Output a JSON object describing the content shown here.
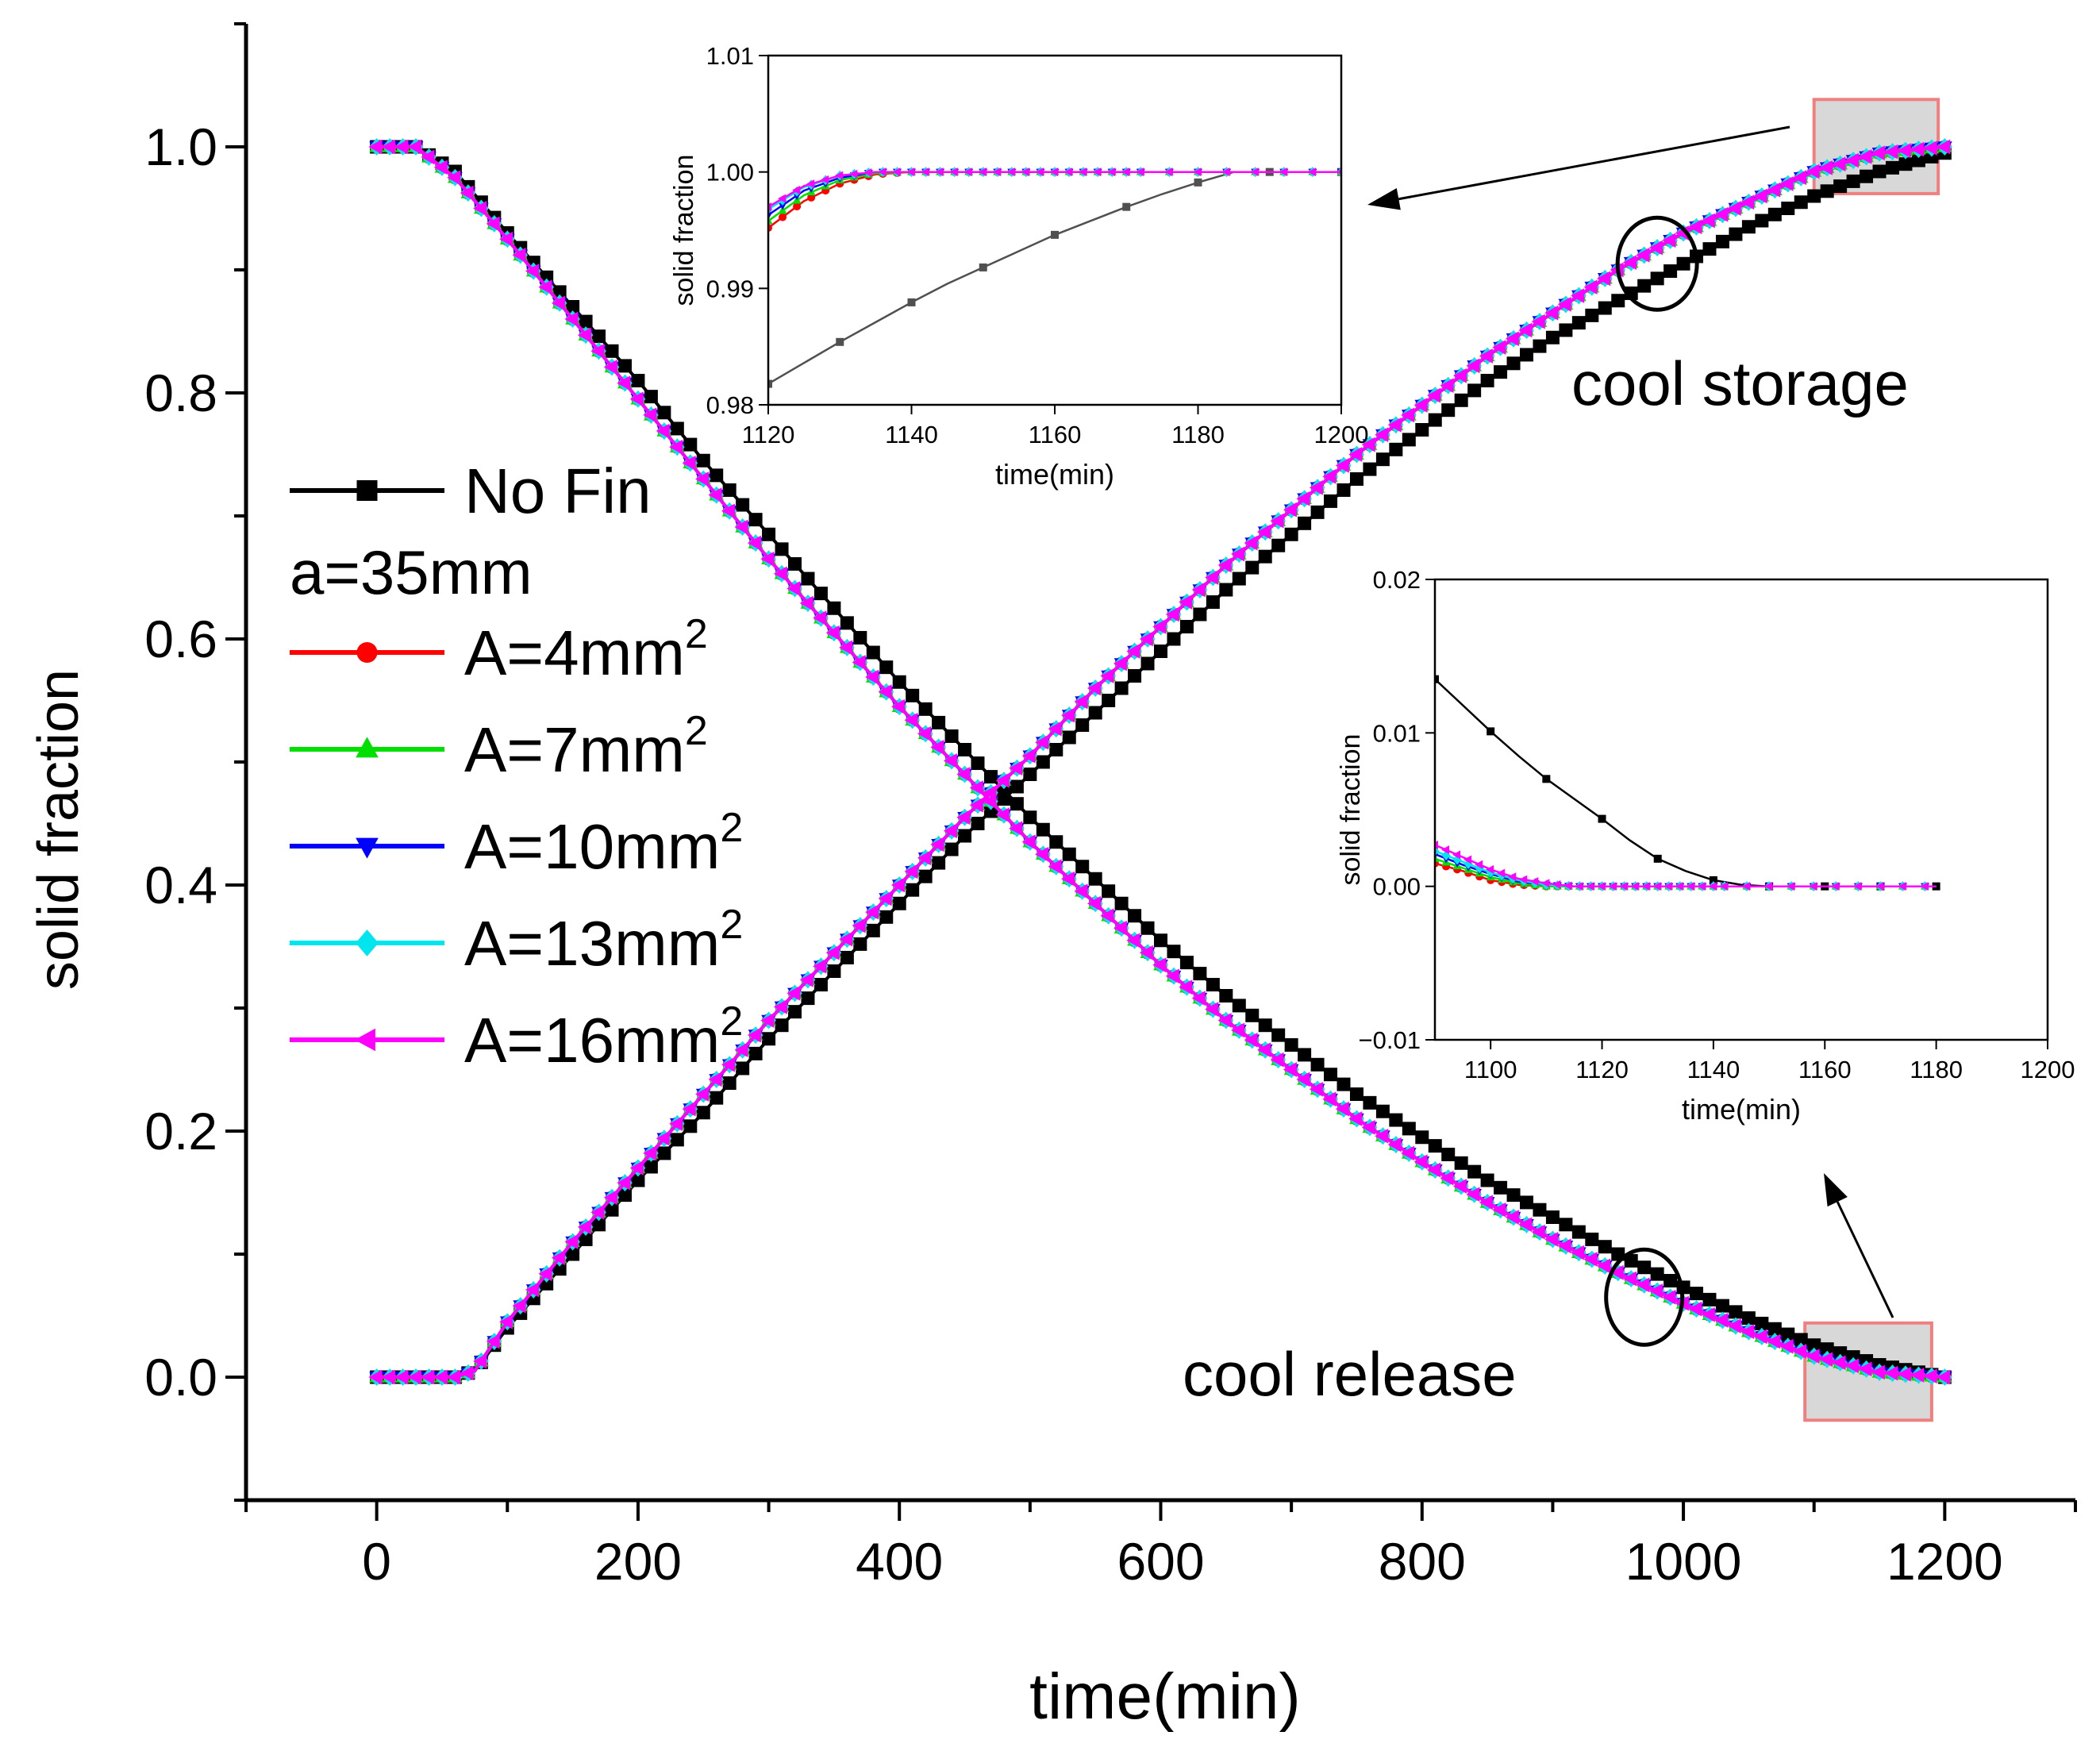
{
  "chart_data": [
    {
      "type": "line",
      "xlabel": "time(min)",
      "ylabel": "solid fraction",
      "xlim": [
        -100,
        1300
      ],
      "ylim": [
        -0.1,
        1.1
      ],
      "xticks": [
        0,
        200,
        400,
        600,
        800,
        1000,
        1200
      ],
      "xtick_labels": [
        "0",
        "200",
        "400",
        "600",
        "800",
        "1000",
        "1200"
      ],
      "yticks": [
        0.0,
        0.2,
        0.4,
        0.6,
        0.8,
        1.0
      ],
      "ytick_labels": [
        "0.0",
        "0.2",
        "0.4",
        "0.6",
        "0.8",
        "1.0"
      ],
      "grid": false,
      "legend_placement": "center-left",
      "legend_subtitle": "a=35mm",
      "annotations": [
        {
          "text": "cool storage"
        },
        {
          "text": "cool release"
        }
      ],
      "x_release": [
        0,
        30,
        60,
        100,
        150,
        200,
        250,
        300,
        350,
        400,
        450,
        500,
        550,
        600,
        650,
        700,
        750,
        800,
        850,
        900,
        950,
        1000,
        1050,
        1100,
        1150,
        1200
      ],
      "x_storage": [
        0,
        20,
        40,
        60,
        75,
        100,
        150,
        200,
        250,
        300,
        350,
        400,
        450,
        500,
        550,
        600,
        650,
        700,
        750,
        800,
        850,
        900,
        950,
        1000,
        1050,
        1100,
        1150,
        1200
      ],
      "series": [
        {
          "name": "No Fin",
          "color": "#000000",
          "marker": "square",
          "release": [
            1.0,
            1.0,
            0.98,
            0.93,
            0.87,
            0.81,
            0.745,
            0.685,
            0.625,
            0.565,
            0.51,
            0.455,
            0.405,
            0.355,
            0.31,
            0.27,
            0.23,
            0.195,
            0.16,
            0.13,
            0.1,
            0.073,
            0.048,
            0.026,
            0.01,
            0.0
          ],
          "storage": [
            0.0,
            0.0,
            0.0,
            0.0,
            0.005,
            0.04,
            0.1,
            0.16,
            0.215,
            0.275,
            0.33,
            0.385,
            0.44,
            0.49,
            0.54,
            0.59,
            0.64,
            0.685,
            0.73,
            0.77,
            0.81,
            0.845,
            0.875,
            0.905,
            0.935,
            0.96,
            0.98,
            0.995
          ]
        },
        {
          "name": "A=4mm",
          "unit_sup": "2",
          "color": "#ff0000",
          "marker": "circle",
          "release": [
            1.0,
            1.0,
            0.975,
            0.925,
            0.86,
            0.795,
            0.73,
            0.665,
            0.605,
            0.545,
            0.49,
            0.435,
            0.385,
            0.335,
            0.29,
            0.25,
            0.21,
            0.175,
            0.142,
            0.112,
            0.085,
            0.06,
            0.037,
            0.017,
            0.004,
            0.0
          ],
          "storage": [
            0.0,
            0.0,
            0.0,
            0.0,
            0.005,
            0.045,
            0.11,
            0.17,
            0.23,
            0.29,
            0.345,
            0.4,
            0.455,
            0.505,
            0.56,
            0.61,
            0.66,
            0.705,
            0.75,
            0.79,
            0.83,
            0.865,
            0.9,
            0.93,
            0.955,
            0.98,
            0.995,
            1.0
          ]
        },
        {
          "name": "A=7mm",
          "unit_sup": "2",
          "color": "#00e000",
          "marker": "triangle-up",
          "release": [
            1.0,
            1.0,
            0.975,
            0.925,
            0.86,
            0.795,
            0.73,
            0.665,
            0.605,
            0.545,
            0.49,
            0.435,
            0.385,
            0.335,
            0.29,
            0.25,
            0.21,
            0.175,
            0.142,
            0.112,
            0.085,
            0.06,
            0.037,
            0.017,
            0.004,
            0.0
          ],
          "storage": [
            0.0,
            0.0,
            0.0,
            0.0,
            0.005,
            0.045,
            0.11,
            0.17,
            0.23,
            0.29,
            0.345,
            0.4,
            0.455,
            0.505,
            0.56,
            0.61,
            0.66,
            0.705,
            0.75,
            0.79,
            0.83,
            0.865,
            0.9,
            0.93,
            0.955,
            0.98,
            0.995,
            1.0
          ]
        },
        {
          "name": "A=10mm",
          "unit_sup": "2",
          "color": "#0000ff",
          "marker": "triangle-down",
          "release": [
            1.0,
            1.0,
            0.975,
            0.925,
            0.86,
            0.795,
            0.73,
            0.665,
            0.605,
            0.545,
            0.49,
            0.435,
            0.385,
            0.335,
            0.29,
            0.25,
            0.21,
            0.175,
            0.142,
            0.112,
            0.085,
            0.06,
            0.037,
            0.017,
            0.004,
            0.0
          ],
          "storage": [
            0.0,
            0.0,
            0.0,
            0.0,
            0.005,
            0.045,
            0.11,
            0.17,
            0.23,
            0.29,
            0.345,
            0.4,
            0.455,
            0.505,
            0.56,
            0.61,
            0.66,
            0.705,
            0.75,
            0.79,
            0.83,
            0.865,
            0.9,
            0.93,
            0.955,
            0.98,
            0.995,
            1.0
          ]
        },
        {
          "name": "A=13mm",
          "unit_sup": "2",
          "color": "#00e5ee",
          "marker": "diamond",
          "release": [
            1.0,
            1.0,
            0.975,
            0.925,
            0.86,
            0.795,
            0.73,
            0.665,
            0.605,
            0.545,
            0.49,
            0.435,
            0.385,
            0.335,
            0.29,
            0.25,
            0.21,
            0.175,
            0.142,
            0.112,
            0.085,
            0.06,
            0.037,
            0.017,
            0.004,
            0.0
          ],
          "storage": [
            0.0,
            0.0,
            0.0,
            0.0,
            0.005,
            0.045,
            0.11,
            0.17,
            0.23,
            0.29,
            0.345,
            0.4,
            0.455,
            0.505,
            0.56,
            0.61,
            0.66,
            0.705,
            0.75,
            0.79,
            0.83,
            0.865,
            0.9,
            0.93,
            0.955,
            0.98,
            0.995,
            1.0
          ]
        },
        {
          "name": "A=16mm",
          "unit_sup": "2",
          "color": "#ff00ff",
          "marker": "triangle-left",
          "release": [
            1.0,
            1.0,
            0.975,
            0.925,
            0.86,
            0.795,
            0.73,
            0.665,
            0.605,
            0.545,
            0.49,
            0.435,
            0.385,
            0.335,
            0.29,
            0.25,
            0.21,
            0.175,
            0.142,
            0.112,
            0.085,
            0.06,
            0.037,
            0.017,
            0.004,
            0.0
          ],
          "storage": [
            0.0,
            0.0,
            0.0,
            0.0,
            0.005,
            0.045,
            0.11,
            0.17,
            0.23,
            0.29,
            0.345,
            0.4,
            0.455,
            0.505,
            0.56,
            0.61,
            0.66,
            0.705,
            0.75,
            0.79,
            0.83,
            0.865,
            0.9,
            0.93,
            0.955,
            0.98,
            0.995,
            1.0
          ]
        }
      ]
    },
    {
      "type": "line",
      "role": "inset-cool-storage",
      "xlabel": "time(min)",
      "ylabel": "solid fraction",
      "xlim": [
        1120,
        1200
      ],
      "ylim": [
        0.98,
        1.01
      ],
      "xticks": [
        1120,
        1140,
        1160,
        1180,
        1200
      ],
      "xtick_labels": [
        "1120",
        "1140",
        "1160",
        "1180",
        "1200"
      ],
      "yticks": [
        0.98,
        0.99,
        1.0,
        1.01
      ],
      "ytick_labels": [
        "0.98",
        "0.99",
        "1.00",
        "1.01"
      ],
      "x": [
        1120,
        1125,
        1130,
        1135,
        1140,
        1145,
        1150,
        1155,
        1160,
        1165,
        1170,
        1175,
        1180,
        1185,
        1190,
        1195,
        1200
      ],
      "series": [
        {
          "name": "No Fin",
          "color": "#505050",
          "marker": "square",
          "values": [
            0.9818,
            0.9836,
            0.9854,
            0.9871,
            0.9888,
            0.9904,
            0.9918,
            0.9932,
            0.9946,
            0.9958,
            0.997,
            0.9981,
            0.9991,
            1.0,
            1.0,
            1.0,
            1.0
          ]
        },
        {
          "name": "A=4mm",
          "color": "#ff0000",
          "marker": "circle",
          "values": [
            0.9952,
            0.9975,
            0.999,
            0.9998,
            1.0,
            1.0,
            1.0,
            1.0,
            1.0,
            1.0,
            1.0,
            1.0,
            1.0,
            1.0,
            1.0,
            1.0,
            1.0
          ]
        },
        {
          "name": "A=7mm",
          "color": "#00e000",
          "marker": "triangle-up",
          "values": [
            0.9958,
            0.998,
            0.9993,
            0.9999,
            1.0,
            1.0,
            1.0,
            1.0,
            1.0,
            1.0,
            1.0,
            1.0,
            1.0,
            1.0,
            1.0,
            1.0,
            1.0
          ]
        },
        {
          "name": "A=10mm",
          "color": "#0000ff",
          "marker": "triangle-down",
          "values": [
            0.9963,
            0.9984,
            0.9995,
            1.0,
            1.0,
            1.0,
            1.0,
            1.0,
            1.0,
            1.0,
            1.0,
            1.0,
            1.0,
            1.0,
            1.0,
            1.0,
            1.0
          ]
        },
        {
          "name": "A=13mm",
          "color": "#00e5ee",
          "marker": "diamond",
          "values": [
            0.9968,
            0.9987,
            0.9997,
            1.0,
            1.0,
            1.0,
            1.0,
            1.0,
            1.0,
            1.0,
            1.0,
            1.0,
            1.0,
            1.0,
            1.0,
            1.0,
            1.0
          ]
        },
        {
          "name": "A=16mm",
          "color": "#ff00ff",
          "marker": "triangle-left",
          "values": [
            0.997,
            0.9988,
            0.9997,
            1.0,
            1.0,
            1.0,
            1.0,
            1.0,
            1.0,
            1.0,
            1.0,
            1.0,
            1.0,
            1.0,
            1.0,
            1.0,
            1.0
          ]
        }
      ]
    },
    {
      "type": "line",
      "role": "inset-cool-release",
      "xlabel": "time(min)",
      "ylabel": "solid fraction",
      "xlim": [
        1090,
        1200
      ],
      "ylim": [
        -0.01,
        0.02
      ],
      "xticks": [
        1100,
        1120,
        1140,
        1160,
        1180,
        1200
      ],
      "xtick_labels": [
        "1100",
        "1120",
        "1140",
        "1160",
        "1180",
        "1200"
      ],
      "yticks": [
        -0.01,
        0.0,
        0.01,
        0.02
      ],
      "ytick_labels": [
        "−0.01",
        "0.00",
        "0.01",
        "0.02"
      ],
      "x": [
        1090,
        1095,
        1100,
        1105,
        1110,
        1115,
        1120,
        1125,
        1130,
        1135,
        1140,
        1145,
        1150,
        1155,
        1160,
        1165,
        1170,
        1175,
        1180
      ],
      "series": [
        {
          "name": "No Fin",
          "color": "#000000",
          "marker": "square",
          "values": [
            0.0135,
            0.0118,
            0.0101,
            0.0085,
            0.007,
            0.0057,
            0.0044,
            0.003,
            0.0018,
            0.001,
            0.0004,
            0.0001,
            0.0,
            0.0,
            0.0,
            0.0,
            0.0,
            0.0,
            0.0
          ]
        },
        {
          "name": "A=4mm",
          "color": "#ff0000",
          "marker": "circle",
          "values": [
            0.0015,
            0.001,
            0.0004,
            0.0001,
            0.0,
            0.0,
            0.0,
            0.0,
            0.0,
            0.0,
            0.0,
            0.0,
            0.0,
            0.0,
            0.0,
            0.0,
            0.0,
            0.0,
            0.0
          ]
        },
        {
          "name": "A=7mm",
          "color": "#00e000",
          "marker": "triangle-up",
          "values": [
            0.0018,
            0.0012,
            0.0006,
            0.0002,
            0.0,
            0.0,
            0.0,
            0.0,
            0.0,
            0.0,
            0.0,
            0.0,
            0.0,
            0.0,
            0.0,
            0.0,
            0.0,
            0.0,
            0.0
          ]
        },
        {
          "name": "A=10mm",
          "color": "#0000ff",
          "marker": "triangle-down",
          "values": [
            0.0021,
            0.0014,
            0.0008,
            0.0003,
            0.0001,
            0.0,
            0.0,
            0.0,
            0.0,
            0.0,
            0.0,
            0.0,
            0.0,
            0.0,
            0.0,
            0.0,
            0.0,
            0.0,
            0.0
          ]
        },
        {
          "name": "A=13mm",
          "color": "#00e5ee",
          "marker": "diamond",
          "values": [
            0.0023,
            0.0016,
            0.0009,
            0.0004,
            0.0001,
            0.0,
            0.0,
            0.0,
            0.0,
            0.0,
            0.0,
            0.0,
            0.0,
            0.0,
            0.0,
            0.0,
            0.0,
            0.0,
            0.0
          ]
        },
        {
          "name": "A=16mm",
          "color": "#ff00ff",
          "marker": "triangle-left",
          "values": [
            0.0027,
            0.0019,
            0.0011,
            0.0005,
            0.0002,
            0.0,
            0.0,
            0.0,
            0.0,
            0.0,
            0.0,
            0.0,
            0.0,
            0.0,
            0.0,
            0.0,
            0.0,
            0.0,
            0.0
          ]
        }
      ]
    }
  ]
}
